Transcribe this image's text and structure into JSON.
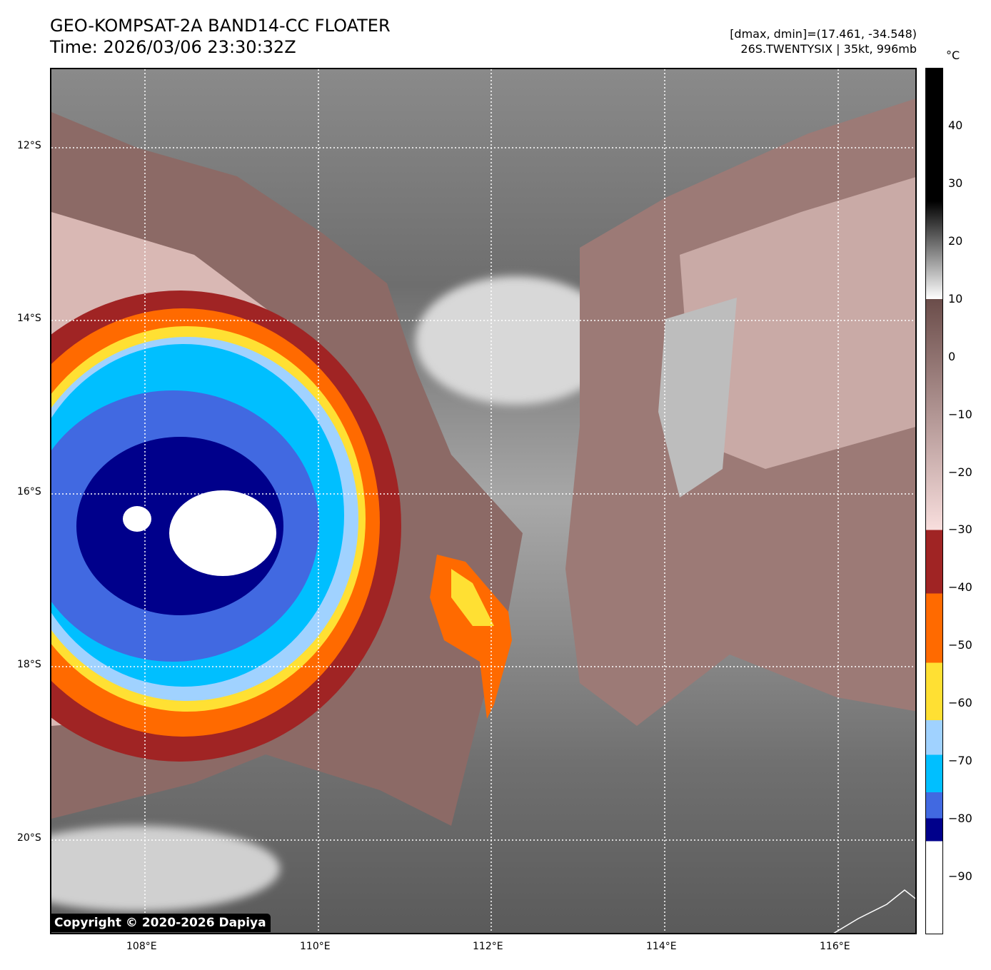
{
  "header": {
    "title": "GEO-KOMPSAT-2A BAND14-CC FLOATER",
    "time": "Time: 2026/03/06 23:30:32Z",
    "range": "[dmax, dmin]=(17.461, -34.548)",
    "storm": "26S.TWENTYSIX | 35kt, 996mb"
  },
  "map": {
    "lon_labels": [
      "108°E",
      "110°E",
      "112°E",
      "114°E",
      "116°E"
    ],
    "lat_labels": [
      "12°S",
      "14°S",
      "16°S",
      "18°S",
      "20°S"
    ],
    "copyright": "Copyright © 2020-2026 Dapiya"
  },
  "colorbar": {
    "unit": "°C",
    "range": [
      -100,
      50
    ],
    "ticks": [
      "40",
      "30",
      "20",
      "10",
      "0",
      "−10",
      "−20",
      "−30",
      "−40",
      "−50",
      "−60",
      "−70",
      "−80",
      "−90"
    ],
    "colors": {
      "red": "#a02424",
      "orange": "#ff6a00",
      "yellow": "#ffe033",
      "lightblue": "#a0d2ff",
      "cyan": "#00bfff",
      "royal": "#4169e1",
      "navy": "#00008b",
      "white": "#ffffff"
    }
  }
}
